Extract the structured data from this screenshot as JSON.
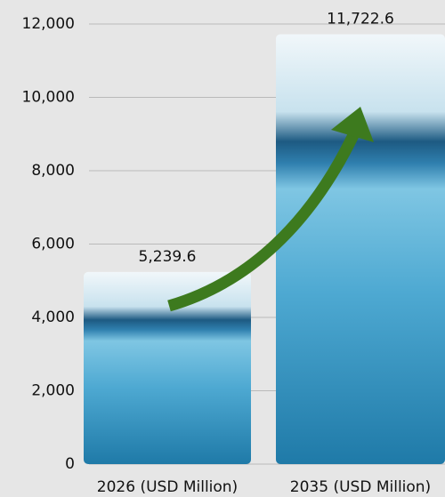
{
  "chart_data": {
    "type": "bar",
    "categories": [
      "2026 (USD Million)",
      "2035 (USD Million)"
    ],
    "values": [
      5239.6,
      11722.6
    ],
    "value_labels": [
      "5,239.6",
      "11,722.6"
    ],
    "ylim": [
      0,
      12000
    ],
    "yticks": [
      0,
      {
        "value": 2000,
        "label": "2,000"
      },
      {
        "value": 4000,
        "label": "4,000"
      },
      {
        "value": 6000,
        "label": "6,000"
      },
      {
        "value": 8000,
        "label": "8,000"
      },
      {
        "value": 10000,
        "label": "10,000"
      },
      {
        "value": 12000,
        "label": "12,000"
      }
    ],
    "grid": true
  }
}
